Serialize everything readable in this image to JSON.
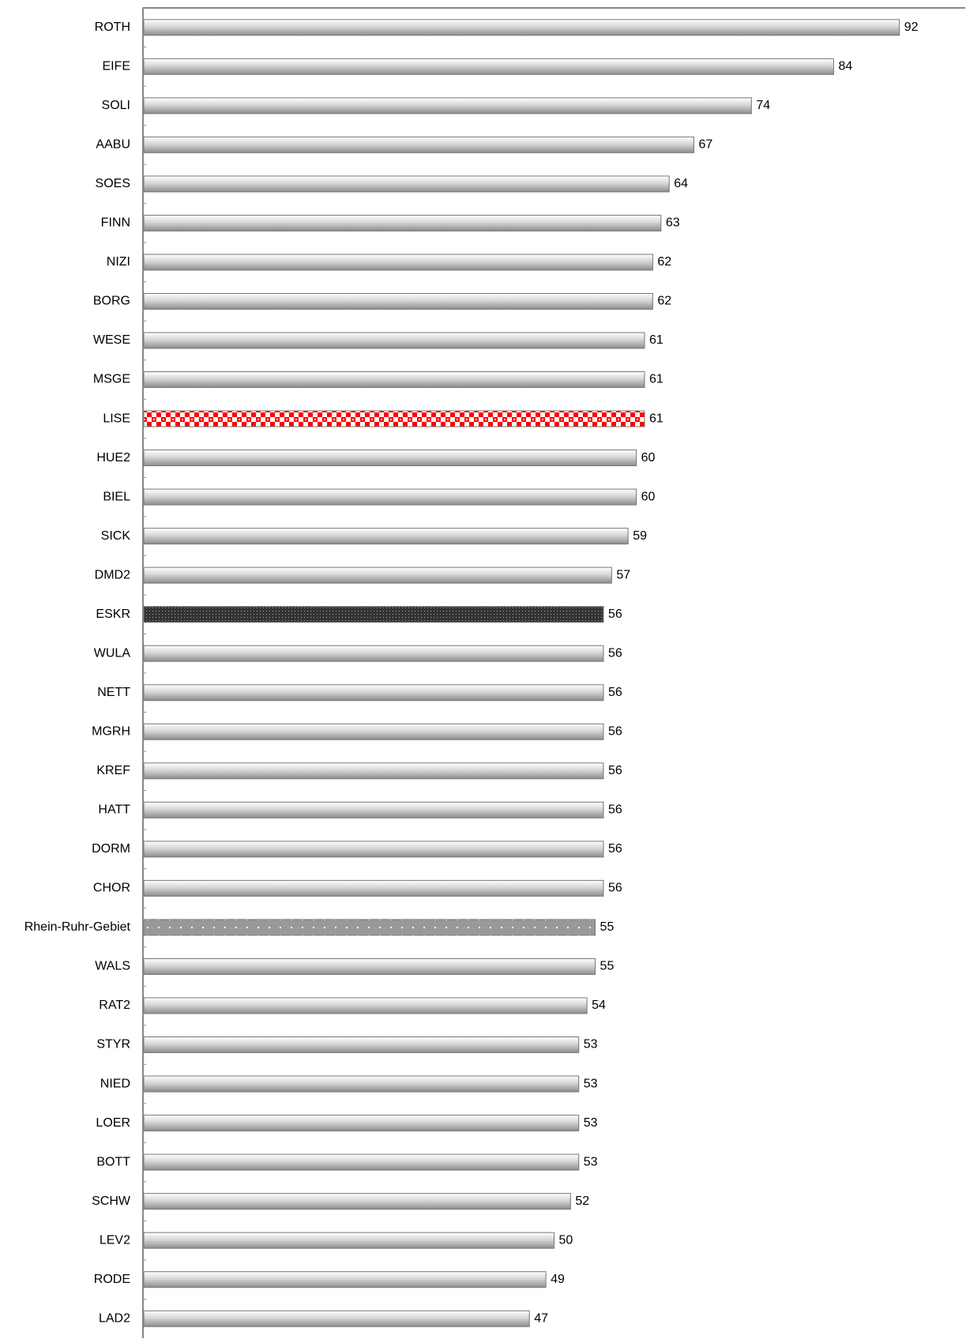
{
  "chart_data": {
    "type": "hbar",
    "categories": [
      "ROTH",
      "EIFE",
      "SOLI",
      "AABU",
      "SOES",
      "FINN",
      "NIZI",
      "BORG",
      "WESE",
      "MSGE",
      "LISE",
      "HUE2",
      "BIEL",
      "SICK",
      "DMD2",
      "ESKR",
      "WULA",
      "NETT",
      "MGRH",
      "KREF",
      "HATT",
      "DORM",
      "CHOR",
      "Rhein-Ruhr-Gebiet",
      "WALS",
      "RAT2",
      "STYR",
      "NIED",
      "LOER",
      "BOTT",
      "SCHW",
      "LEV2",
      "RODE",
      "LAD2"
    ],
    "values": [
      92,
      84,
      74,
      67,
      64,
      63,
      62,
      62,
      61,
      61,
      61,
      60,
      60,
      59,
      57,
      56,
      56,
      56,
      56,
      56,
      56,
      56,
      56,
      55,
      55,
      54,
      53,
      53,
      53,
      53,
      52,
      50,
      49,
      47
    ],
    "color": "#b4b4b4",
    "highlights": [
      {
        "category": "LISE",
        "pattern": "checker",
        "color": "#ff0000"
      },
      {
        "category": "ESKR",
        "pattern": "dots",
        "color": "#333333"
      },
      {
        "category": "Rhein-Ruhr-Gebiet",
        "pattern": "sparse-dots",
        "color": "#999999"
      }
    ],
    "xlim": [
      0,
      100
    ]
  }
}
